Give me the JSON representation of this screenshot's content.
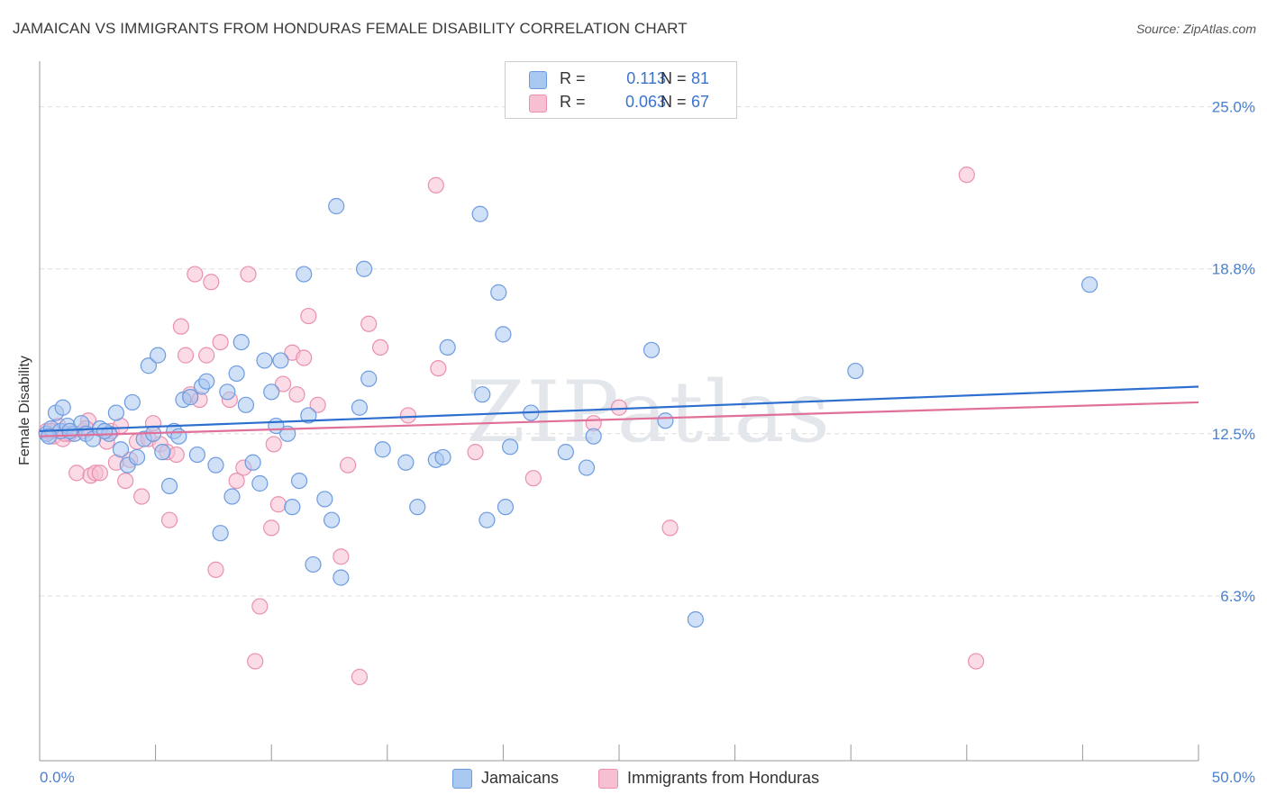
{
  "title": "JAMAICAN VS IMMIGRANTS FROM HONDURAS FEMALE DISABILITY CORRELATION CHART",
  "source": "Source: ZipAtlas.com",
  "watermark": "ZIPatlas",
  "legend": {
    "series1": {
      "r_label": "R =",
      "r_value": "0.113",
      "n_label": "N =",
      "n_value": "81"
    },
    "series2": {
      "r_label": "R =",
      "r_value": "0.063",
      "n_label": "N =",
      "n_value": "67"
    }
  },
  "bottom_legend": {
    "series1": "Jamaicans",
    "series2": "Immigrants from Honduras"
  },
  "colors": {
    "blue_fill": "#a9c8f0",
    "blue_stroke": "#6d9be0",
    "blue_line": "#2d6fcf",
    "pink_fill": "#f7c0d2",
    "pink_stroke": "#ea8fb0",
    "pink_line": "#e0709a",
    "grid": "#dddddd",
    "axis": "#999999",
    "tick_text": "#4a80cf"
  },
  "chart_data": {
    "type": "scatter",
    "title": "JAMAICAN VS IMMIGRANTS FROM HONDURAS FEMALE DISABILITY CORRELATION CHART",
    "xlabel": "",
    "ylabel": "Female Disability",
    "xlim": [
      0,
      50
    ],
    "ylim": [
      0,
      26.5
    ],
    "x_tick_labels": [
      "0.0%",
      "50.0%"
    ],
    "y_ticks": [
      6.3,
      12.5,
      18.8,
      25.0
    ],
    "y_tick_labels": [
      "6.3%",
      "12.5%",
      "18.8%",
      "25.0%"
    ],
    "grid": true,
    "series": [
      {
        "name": "Jamaicans",
        "r": 0.113,
        "n": 81,
        "trend": {
          "x": [
            0,
            50
          ],
          "y": [
            12.6,
            14.3
          ]
        },
        "points": [
          [
            0.3,
            12.5
          ],
          [
            0.5,
            12.7
          ],
          [
            0.7,
            13.3
          ],
          [
            0.9,
            12.6
          ],
          [
            1.0,
            13.5
          ],
          [
            1.2,
            12.8
          ],
          [
            1.5,
            12.5
          ],
          [
            1.8,
            12.9
          ],
          [
            2.0,
            12.5
          ],
          [
            2.3,
            12.3
          ],
          [
            2.6,
            12.7
          ],
          [
            3.0,
            12.5
          ],
          [
            3.3,
            13.3
          ],
          [
            3.5,
            11.9
          ],
          [
            3.8,
            11.3
          ],
          [
            4.0,
            13.7
          ],
          [
            4.2,
            11.6
          ],
          [
            4.5,
            12.3
          ],
          [
            4.7,
            15.1
          ],
          [
            4.9,
            12.5
          ],
          [
            5.1,
            15.5
          ],
          [
            5.3,
            11.8
          ],
          [
            5.6,
            10.5
          ],
          [
            5.8,
            12.6
          ],
          [
            6.0,
            12.4
          ],
          [
            6.2,
            13.8
          ],
          [
            6.5,
            13.9
          ],
          [
            6.8,
            11.7
          ],
          [
            7.0,
            14.3
          ],
          [
            7.2,
            14.5
          ],
          [
            7.6,
            11.3
          ],
          [
            7.8,
            8.7
          ],
          [
            8.1,
            14.1
          ],
          [
            8.3,
            10.1
          ],
          [
            8.5,
            14.8
          ],
          [
            8.7,
            16.0
          ],
          [
            8.9,
            13.6
          ],
          [
            9.2,
            11.4
          ],
          [
            9.5,
            10.6
          ],
          [
            9.7,
            15.3
          ],
          [
            10.0,
            14.1
          ],
          [
            10.2,
            12.8
          ],
          [
            10.4,
            15.3
          ],
          [
            10.7,
            12.5
          ],
          [
            10.9,
            9.7
          ],
          [
            11.2,
            10.7
          ],
          [
            11.4,
            18.6
          ],
          [
            11.6,
            13.2
          ],
          [
            11.8,
            7.5
          ],
          [
            12.3,
            10.0
          ],
          [
            12.6,
            9.2
          ],
          [
            12.8,
            21.2
          ],
          [
            13.0,
            7.0
          ],
          [
            13.8,
            13.5
          ],
          [
            14.0,
            18.8
          ],
          [
            14.2,
            14.6
          ],
          [
            14.8,
            11.9
          ],
          [
            15.8,
            11.4
          ],
          [
            16.3,
            9.7
          ],
          [
            17.1,
            11.5
          ],
          [
            17.4,
            11.6
          ],
          [
            17.6,
            15.8
          ],
          [
            19.0,
            20.9
          ],
          [
            19.1,
            14.0
          ],
          [
            19.3,
            9.2
          ],
          [
            19.8,
            17.9
          ],
          [
            20.0,
            16.3
          ],
          [
            20.1,
            9.7
          ],
          [
            20.3,
            12.0
          ],
          [
            21.2,
            13.3
          ],
          [
            22.7,
            11.8
          ],
          [
            23.6,
            11.2
          ],
          [
            23.9,
            12.4
          ],
          [
            26.4,
            15.7
          ],
          [
            27.0,
            13.0
          ],
          [
            28.3,
            5.4
          ],
          [
            35.2,
            14.9
          ],
          [
            45.3,
            18.2
          ],
          [
            0.4,
            12.4
          ],
          [
            1.3,
            12.6
          ],
          [
            2.8,
            12.6
          ]
        ]
      },
      {
        "name": "Immigrants from Honduras",
        "r": 0.063,
        "n": 67,
        "trend": {
          "x": [
            0,
            50
          ],
          "y": [
            12.4,
            13.7
          ]
        },
        "points": [
          [
            0.3,
            12.6
          ],
          [
            0.6,
            12.4
          ],
          [
            0.8,
            12.8
          ],
          [
            1.0,
            12.3
          ],
          [
            1.3,
            12.5
          ],
          [
            1.6,
            11.0
          ],
          [
            1.9,
            12.6
          ],
          [
            2.1,
            13.0
          ],
          [
            2.2,
            10.9
          ],
          [
            2.4,
            11.0
          ],
          [
            2.6,
            11.0
          ],
          [
            2.9,
            12.2
          ],
          [
            3.1,
            12.6
          ],
          [
            3.3,
            11.4
          ],
          [
            3.5,
            12.8
          ],
          [
            3.7,
            10.7
          ],
          [
            3.9,
            11.5
          ],
          [
            4.2,
            12.2
          ],
          [
            4.4,
            10.1
          ],
          [
            4.7,
            12.3
          ],
          [
            4.9,
            12.9
          ],
          [
            5.2,
            12.1
          ],
          [
            5.5,
            11.8
          ],
          [
            5.6,
            9.2
          ],
          [
            5.9,
            11.7
          ],
          [
            6.1,
            16.6
          ],
          [
            6.3,
            15.5
          ],
          [
            6.5,
            14.0
          ],
          [
            6.7,
            18.6
          ],
          [
            6.9,
            13.8
          ],
          [
            7.2,
            15.5
          ],
          [
            7.4,
            18.3
          ],
          [
            7.6,
            7.3
          ],
          [
            7.8,
            16.0
          ],
          [
            8.2,
            13.8
          ],
          [
            8.5,
            10.7
          ],
          [
            8.8,
            11.2
          ],
          [
            9.0,
            18.6
          ],
          [
            9.3,
            3.8
          ],
          [
            9.5,
            5.9
          ],
          [
            10.0,
            8.9
          ],
          [
            10.1,
            12.1
          ],
          [
            10.3,
            9.8
          ],
          [
            10.5,
            14.4
          ],
          [
            10.9,
            15.6
          ],
          [
            11.1,
            14.0
          ],
          [
            11.4,
            15.4
          ],
          [
            11.6,
            17.0
          ],
          [
            12.0,
            13.6
          ],
          [
            13.0,
            7.8
          ],
          [
            13.3,
            11.3
          ],
          [
            13.8,
            3.2
          ],
          [
            14.2,
            16.7
          ],
          [
            14.7,
            15.8
          ],
          [
            15.9,
            13.2
          ],
          [
            17.1,
            22.0
          ],
          [
            17.2,
            15.0
          ],
          [
            18.8,
            11.8
          ],
          [
            21.3,
            10.8
          ],
          [
            23.9,
            12.9
          ],
          [
            25.0,
            13.5
          ],
          [
            27.2,
            8.9
          ],
          [
            40.0,
            22.4
          ],
          [
            40.4,
            3.8
          ],
          [
            0.5,
            12.6
          ],
          [
            1.1,
            12.5
          ],
          [
            2.0,
            12.7
          ]
        ]
      }
    ]
  }
}
